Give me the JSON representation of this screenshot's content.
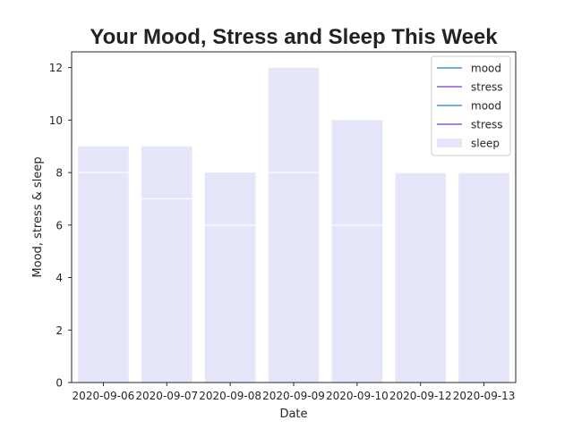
{
  "chart_data": {
    "type": "bar",
    "title": "Your Mood, Stress and Sleep This Week",
    "xlabel": "Date",
    "ylabel": "Mood, stress & sleep",
    "categories": [
      "2020-09-06",
      "2020-09-07",
      "2020-09-08",
      "2020-09-09",
      "2020-09-10",
      "2020-09-12",
      "2020-09-13"
    ],
    "ylim": [
      0,
      12.6
    ],
    "yticks": [
      0,
      2,
      4,
      6,
      8,
      10,
      12
    ],
    "grid": false,
    "legend_position": "top-right",
    "series": [
      {
        "name": "sleep",
        "kind": "bar",
        "color": "#e6e6fa",
        "values": [
          9,
          9,
          8,
          12,
          10,
          8,
          8
        ]
      },
      {
        "name": "mood",
        "kind": "line",
        "color": "#4a90e2",
        "values": [
          8,
          7,
          6,
          8,
          6,
          8,
          8
        ]
      },
      {
        "name": "stress",
        "kind": "line",
        "color": "#8a5cd6",
        "values": [
          8,
          7,
          6,
          8,
          6,
          8,
          8
        ]
      }
    ],
    "legend": [
      {
        "label": "mood",
        "kind": "line",
        "color": "#4a90e2"
      },
      {
        "label": "stress",
        "kind": "line",
        "color": "#8a5cd6"
      },
      {
        "label": "mood",
        "kind": "line",
        "color": "#4a90e2"
      },
      {
        "label": "stress",
        "kind": "line",
        "color": "#8a5cd6"
      },
      {
        "label": "sleep",
        "kind": "patch",
        "color": "#e6e6fa"
      }
    ]
  }
}
